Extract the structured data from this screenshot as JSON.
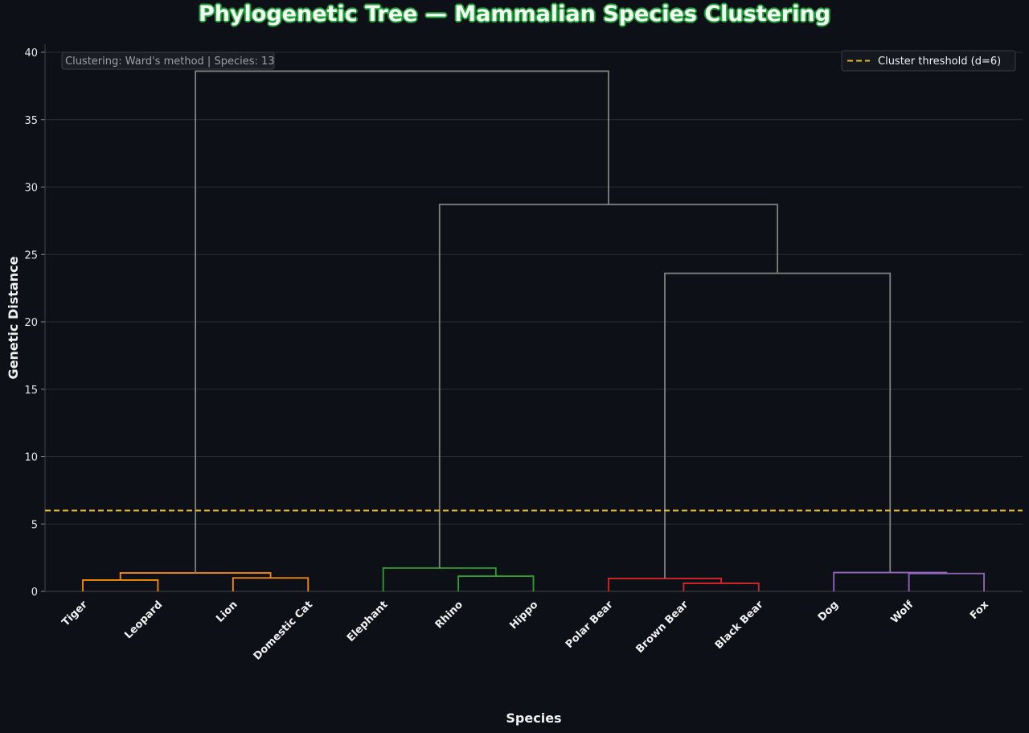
{
  "chart_data": {
    "type": "dendrogram",
    "title": "Phylogenetic Tree — Mammalian Species Clustering",
    "xlabel": "Species",
    "ylabel": "Genetic Distance",
    "ylim": [
      0,
      40.5
    ],
    "yticks": [
      0,
      5,
      10,
      15,
      20,
      25,
      30,
      35,
      40
    ],
    "grid": true,
    "leaves": [
      "Tiger",
      "Leopard",
      "Lion",
      "Domestic Cat",
      "Elephant",
      "Rhino",
      "Hippo",
      "Polar Bear",
      "Brown Bear",
      "Black Bear",
      "Dog",
      "Wolf",
      "Fox"
    ],
    "merges": [
      {
        "a": 0,
        "b": 1,
        "height": 0.84,
        "color": "#ff8c00"
      },
      {
        "a": 2,
        "b": 3,
        "height": 1.0,
        "color": "#ff8c00"
      },
      {
        "a": 13,
        "b": 14,
        "height": 1.37,
        "color": "#ff8c00"
      },
      {
        "a": 5,
        "b": 6,
        "height": 1.13,
        "color": "#2ca02c"
      },
      {
        "a": 4,
        "b": 16,
        "height": 1.73,
        "color": "#2ca02c"
      },
      {
        "a": 8,
        "b": 9,
        "height": 0.6,
        "color": "#d62728"
      },
      {
        "a": 7,
        "b": 18,
        "height": 0.96,
        "color": "#d62728"
      },
      {
        "a": 11,
        "b": 12,
        "height": 1.33,
        "color": "#9467bd"
      },
      {
        "a": 10,
        "b": 20,
        "height": 1.4,
        "color": "#9467bd"
      },
      {
        "a": 19,
        "b": 21,
        "height": 23.6,
        "color": "#808080"
      },
      {
        "a": 17,
        "b": 22,
        "height": 28.7,
        "color": "#808080"
      },
      {
        "a": 15,
        "b": 23,
        "height": 38.6,
        "color": "#808080"
      }
    ],
    "threshold": {
      "value": 6,
      "label": "Cluster threshold (d=6)",
      "color": "#e6b82e"
    },
    "legend_position": "top-right",
    "annotation": "Clustering: Ward's method | Species: 13"
  }
}
